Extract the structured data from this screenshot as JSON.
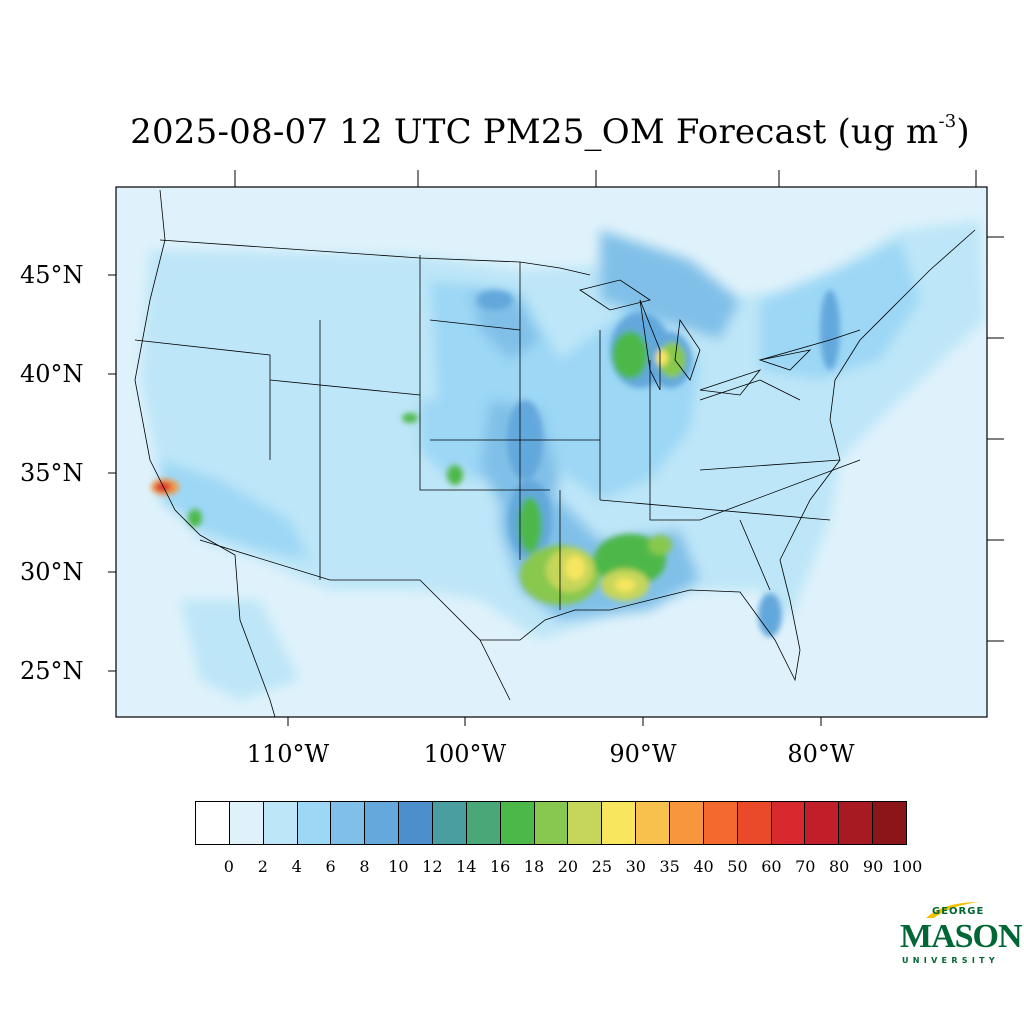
{
  "title": {
    "main": "2025-08-07 12 UTC PM25_OM Forecast (ug m",
    "sup": "-3",
    "close": ")"
  },
  "axes": {
    "lat_labels": [
      "45°N",
      "40°N",
      "35°N",
      "30°N",
      "25°N"
    ],
    "lon_labels": [
      "110°W",
      "100°W",
      "90°W",
      "80°W"
    ]
  },
  "colorbar": {
    "colors": [
      "#ffffff",
      "#dff2fb",
      "#bde6f8",
      "#9cd7f5",
      "#80c0e8",
      "#64a8dc",
      "#4c8fcc",
      "#4a9ea0",
      "#4aa878",
      "#4db84a",
      "#88c84e",
      "#c6d65a",
      "#f7e65e",
      "#f8c04c",
      "#f7963c",
      "#f46a2e",
      "#ea4a2a",
      "#d82a2e",
      "#c01e28",
      "#a81a22",
      "#8a1619"
    ],
    "labels": [
      "0",
      "2",
      "4",
      "6",
      "8",
      "10",
      "12",
      "14",
      "16",
      "18",
      "20",
      "25",
      "30",
      "35",
      "40",
      "50",
      "60",
      "70",
      "80",
      "90",
      "100"
    ]
  },
  "logo": {
    "top": "GEORGE",
    "main": "MASON",
    "bottom": "UNIVERSITY",
    "color": "#006633",
    "accent": "#f2c100"
  }
}
